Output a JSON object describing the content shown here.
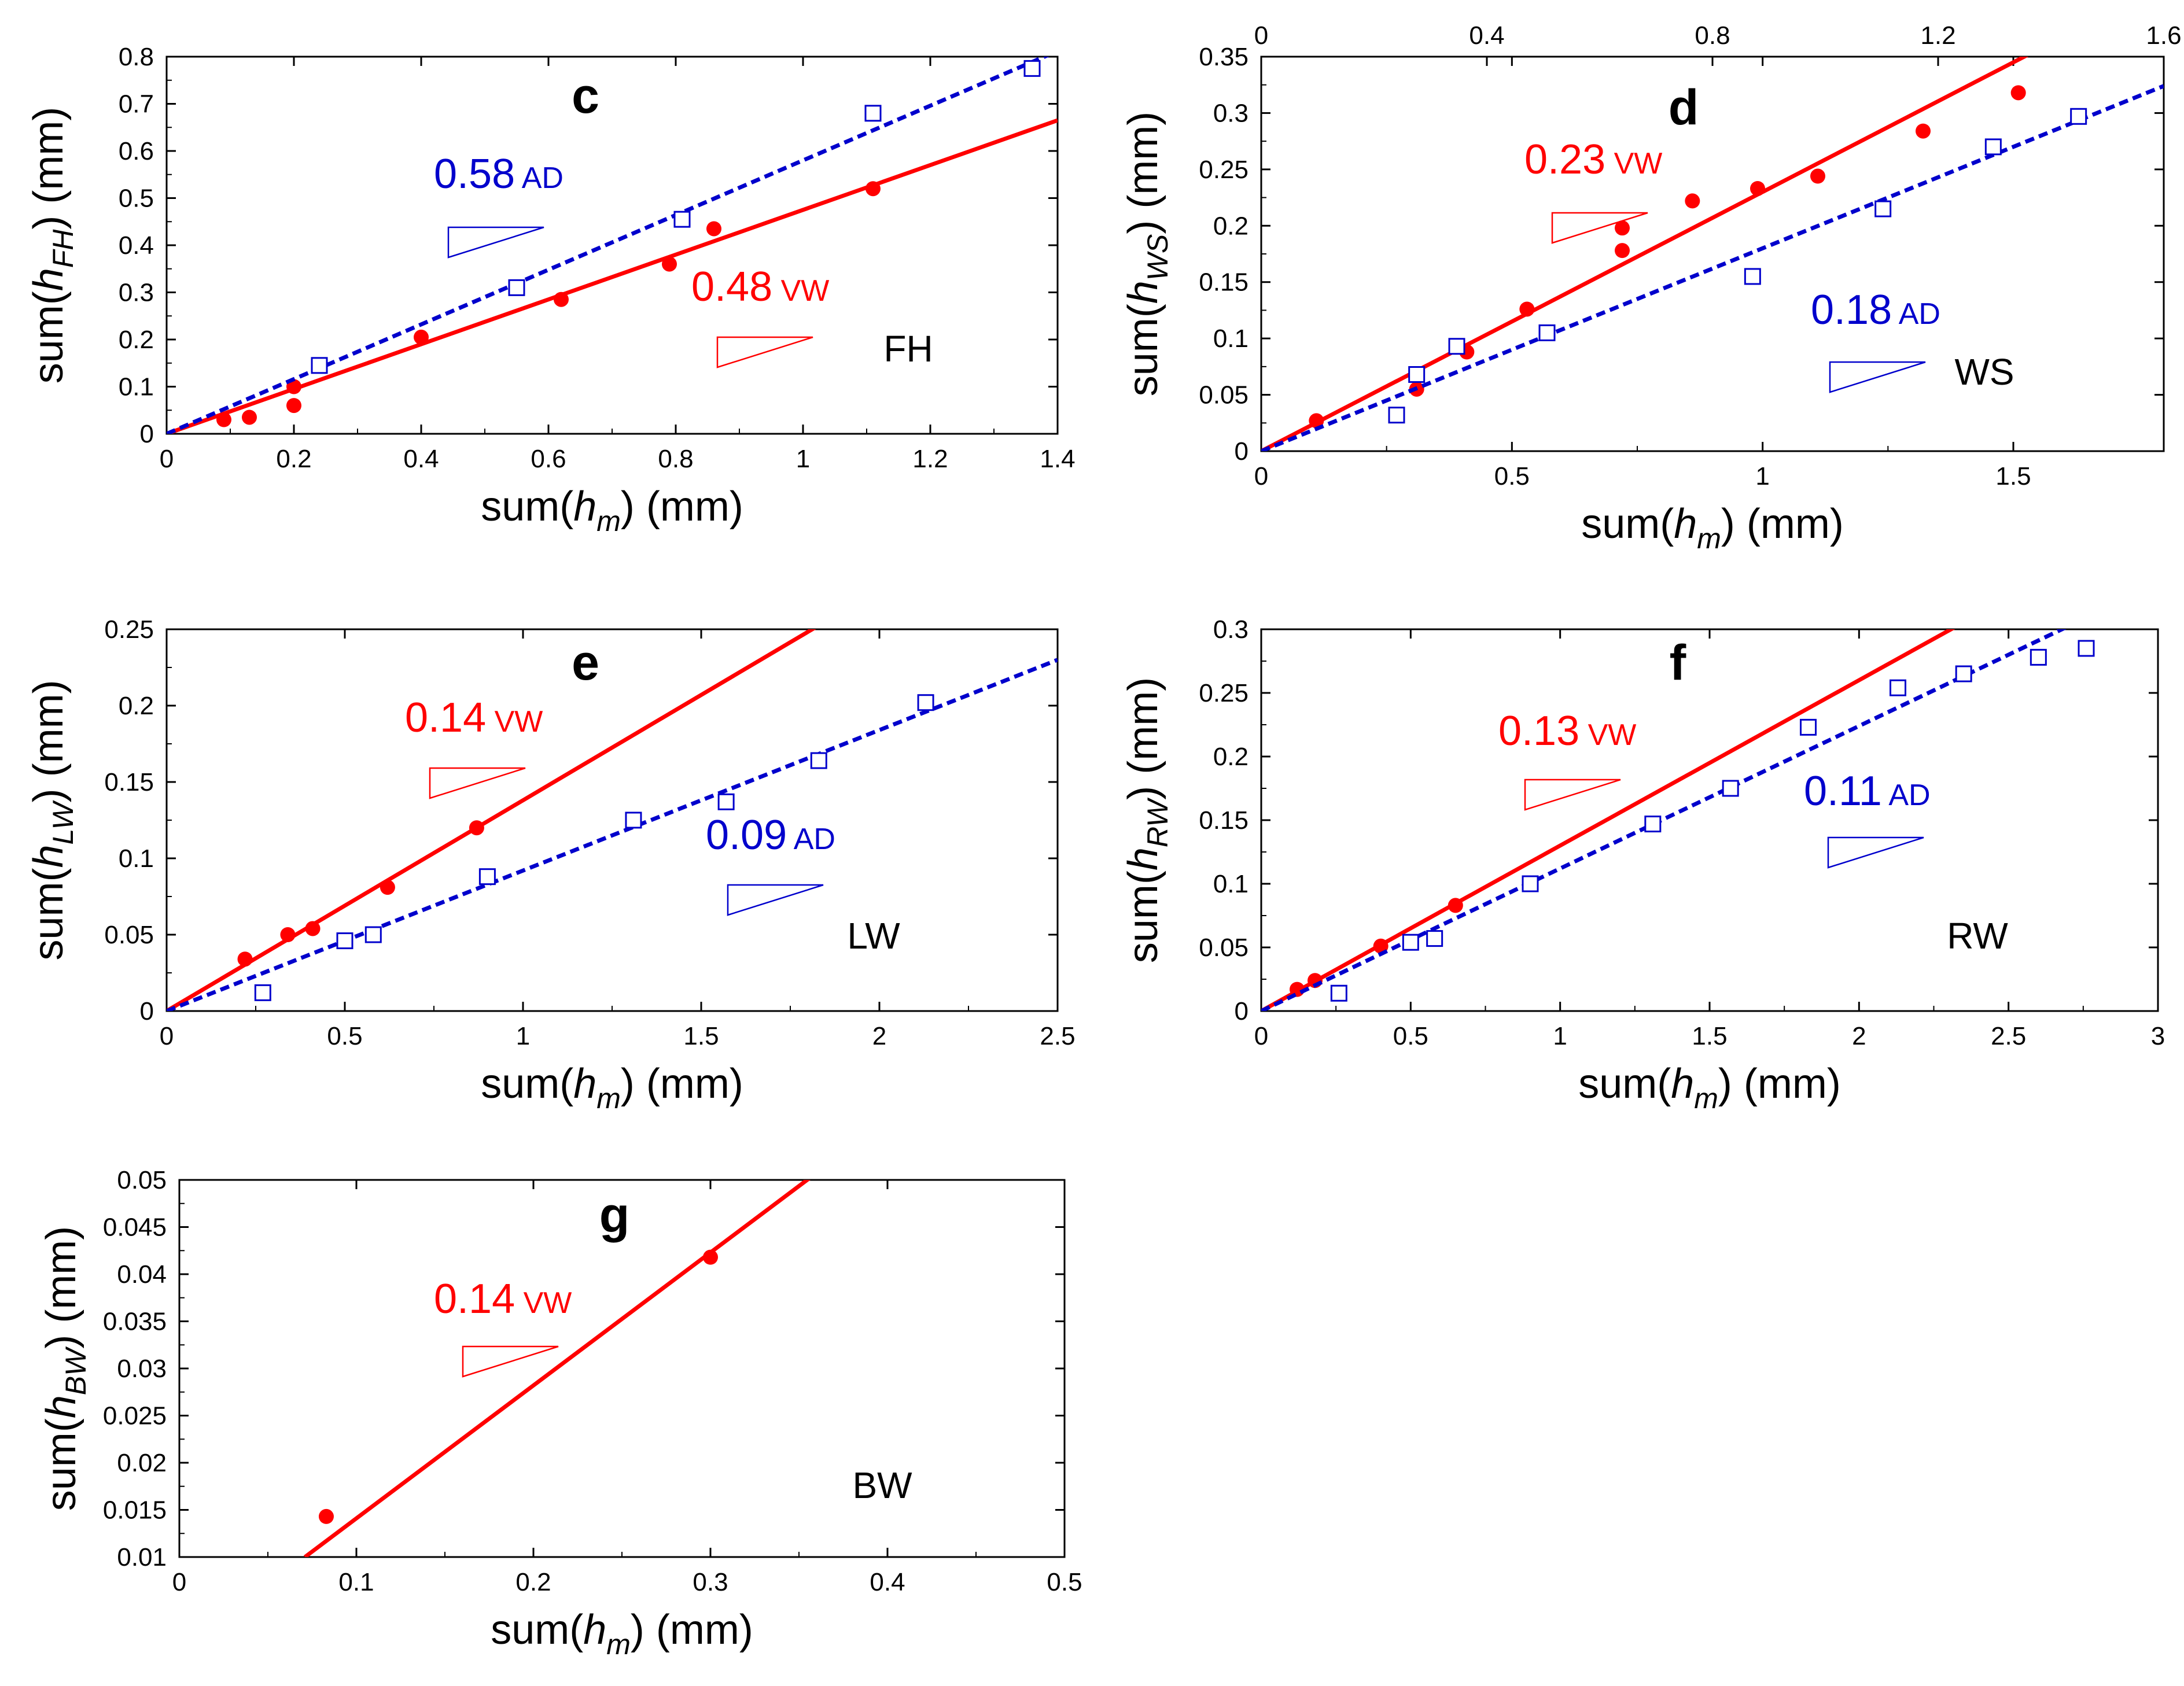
{
  "colors": {
    "vw": "#ff0000",
    "ad": "#0000cc",
    "axis": "#000000"
  },
  "chart_data": [
    {
      "type": "scatter",
      "panel": "c",
      "region_label": "FH",
      "xlabel": {
        "pre": "sum(",
        "sym": "h",
        "sub": "m",
        "post": ") (mm)"
      },
      "ylabel": {
        "pre": "sum(",
        "sym": "h",
        "sub": "FH",
        "post": ") (mm)"
      },
      "xlim": [
        0,
        1.4
      ],
      "ylim": [
        0,
        0.8
      ],
      "xticks": [
        "0",
        "0.2",
        "0.4",
        "0.6",
        "0.8",
        "1",
        "1.2",
        "1.4"
      ],
      "yticks": [
        "0",
        "0.1",
        "0.2",
        "0.3",
        "0.4",
        "0.5",
        "0.6",
        "0.7",
        "0.8"
      ],
      "series": [
        {
          "name": "VW",
          "marker": "filled-circle",
          "x": [
            0.09,
            0.13,
            0.2,
            0.2,
            0.4,
            0.62,
            0.79,
            0.86,
            1.11
          ],
          "y": [
            0.03,
            0.035,
            0.1,
            0.06,
            0.205,
            0.285,
            0.36,
            0.435,
            0.52
          ],
          "fit_slope": 0.475,
          "fit_label": "0.48",
          "fit_tag": "VW"
        },
        {
          "name": "AD",
          "marker": "open-square",
          "x": [
            0.24,
            0.55,
            0.81,
            1.11,
            1.36
          ],
          "y": [
            0.145,
            0.31,
            0.455,
            0.68,
            0.775
          ],
          "fit_slope": 0.58,
          "fit_label": "0.58",
          "fit_tag": "AD"
        }
      ]
    },
    {
      "type": "scatter",
      "panel": "d",
      "region_label": "WS",
      "xlabel": {
        "pre": "sum(",
        "sym": "h",
        "sub": "m",
        "post": ") (mm)"
      },
      "ylabel": {
        "pre": "sum(",
        "sym": "h",
        "sub": "WS",
        "post": ") (mm)"
      },
      "xlim": [
        0,
        1.8
      ],
      "ylim": [
        0,
        0.35
      ],
      "xticks": [
        "0",
        "0.5",
        "1",
        "1.5"
      ],
      "top_xticks": [
        "0",
        "0.4",
        "0.8",
        "1.2",
        "1.6"
      ],
      "yticks": [
        "0",
        "0.05",
        "0.1",
        "0.15",
        "0.2",
        "0.25",
        "0.3",
        "0.35"
      ],
      "series": [
        {
          "name": "VW",
          "marker": "filled-circle",
          "x": [
            0.11,
            0.31,
            0.41,
            0.53,
            0.72,
            0.72,
            0.86,
            0.99,
            1.11,
            1.32,
            1.51
          ],
          "y": [
            0.027,
            0.055,
            0.088,
            0.126,
            0.178,
            0.198,
            0.222,
            0.233,
            0.244,
            0.284,
            0.318
          ],
          "fit_slope": 0.23,
          "fit_label": "0.23",
          "fit_tag": "VW"
        },
        {
          "name": "AD",
          "marker": "open-square",
          "x": [
            0.27,
            0.31,
            0.39,
            0.57,
            0.98,
            1.24,
            1.46,
            1.63
          ],
          "y": [
            0.032,
            0.068,
            0.093,
            0.105,
            0.155,
            0.215,
            0.27,
            0.297
          ],
          "fit_slope": 0.18,
          "fit_label": "0.18",
          "fit_tag": "AD"
        }
      ]
    },
    {
      "type": "scatter",
      "panel": "e",
      "region_label": "LW",
      "xlabel": {
        "pre": "sum(",
        "sym": "h",
        "sub": "m",
        "post": ") (mm)"
      },
      "ylabel": {
        "pre": "sum(",
        "sym": "h",
        "sub": "LW",
        "post": ") (mm)"
      },
      "xlim": [
        0,
        2.5
      ],
      "ylim": [
        0,
        0.25
      ],
      "xticks": [
        "0",
        "0.5",
        "1",
        "1.5",
        "2",
        "2.5"
      ],
      "yticks": [
        "0",
        "0.05",
        "0.1",
        "0.15",
        "0.2",
        "0.25"
      ],
      "series": [
        {
          "name": "VW",
          "marker": "filled-circle",
          "x": [
            0.22,
            0.34,
            0.41,
            0.62,
            0.87
          ],
          "y": [
            0.034,
            0.05,
            0.054,
            0.081,
            0.12
          ],
          "fit_slope": 0.138,
          "fit_label": "0.14",
          "fit_tag": "VW"
        },
        {
          "name": "AD",
          "marker": "open-square",
          "x": [
            0.27,
            0.5,
            0.58,
            0.9,
            1.31,
            1.57,
            1.83,
            2.13
          ],
          "y": [
            0.012,
            0.046,
            0.05,
            0.088,
            0.125,
            0.137,
            0.164,
            0.202
          ],
          "fit_slope": 0.092,
          "fit_label": "0.09",
          "fit_tag": "AD"
        }
      ]
    },
    {
      "type": "scatter",
      "panel": "f",
      "region_label": "RW",
      "xlabel": {
        "pre": "sum(",
        "sym": "h",
        "sub": "m",
        "post": ") (mm)"
      },
      "ylabel": {
        "pre": "sum(",
        "sym": "h",
        "sub": "RW",
        "post": ") (mm)"
      },
      "xlim": [
        0,
        3
      ],
      "ylim": [
        0,
        0.3
      ],
      "xticks": [
        "0",
        "0.5",
        "1",
        "1.5",
        "2",
        "2.5",
        "3"
      ],
      "yticks": [
        "0",
        "0.05",
        "0.1",
        "0.15",
        "0.2",
        "0.25",
        "0.3"
      ],
      "series": [
        {
          "name": "VW",
          "marker": "filled-circle",
          "x": [
            0.12,
            0.18,
            0.4,
            0.65
          ],
          "y": [
            0.017,
            0.024,
            0.051,
            0.083
          ],
          "fit_slope": 0.13,
          "fit_label": "0.13",
          "fit_tag": "VW"
        },
        {
          "name": "AD",
          "marker": "open-square",
          "x": [
            0.26,
            0.5,
            0.58,
            0.9,
            1.31,
            1.57,
            1.83,
            2.13,
            2.35,
            2.6,
            2.76
          ],
          "y": [
            0.014,
            0.054,
            0.057,
            0.1,
            0.147,
            0.175,
            0.223,
            0.254,
            0.265,
            0.278,
            0.285
          ],
          "fit_slope": 0.112,
          "fit_label": "0.11",
          "fit_tag": "AD"
        }
      ]
    },
    {
      "type": "scatter",
      "panel": "g",
      "region_label": "BW",
      "xlabel": {
        "pre": "sum(",
        "sym": "h",
        "sub": "m",
        "post": ") (mm)"
      },
      "ylabel": {
        "pre": "sum(",
        "sym": "h",
        "sub": "BW",
        "post": ") (mm)"
      },
      "xlim": [
        0,
        0.5
      ],
      "ylim": [
        0.01,
        0.05
      ],
      "xticks": [
        "0",
        "0.1",
        "0.2",
        "0.3",
        "0.4",
        "0.5"
      ],
      "yticks": [
        "0.01",
        "0.015",
        "0.02",
        "0.025",
        "0.03",
        "0.035",
        "0.04",
        "0.045",
        "0.05"
      ],
      "series": [
        {
          "name": "VW",
          "marker": "filled-circle",
          "x": [
            0.083,
            0.3
          ],
          "y": [
            0.0143,
            0.0418
          ],
          "fit_slope": 0.141,
          "fit_label": "0.14",
          "fit_tag": "VW"
        }
      ]
    }
  ]
}
